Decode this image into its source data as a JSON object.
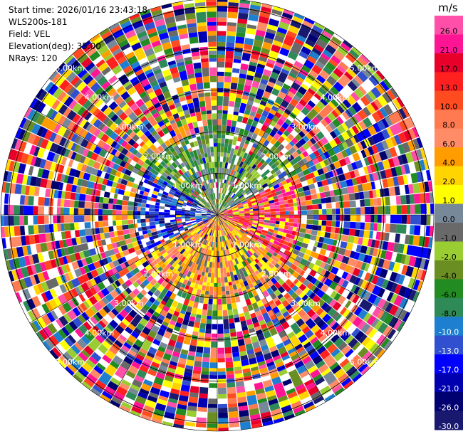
{
  "info": {
    "start_time": "Start time: 2026/01/16 23:43:18",
    "instrument": "WLS200s-181",
    "field": "Field: VEL",
    "elevation": "Elevation(deg): 35.00",
    "nrays": "NRays: 120"
  },
  "chart_data": {
    "type": "heatmap",
    "projection": "polar-ppi",
    "field": "VEL",
    "n_rays": 120,
    "range_rings_km": [
      "1.00km",
      "2.00km",
      "3.00km",
      "4.00km",
      "5.00km"
    ],
    "max_range_km": 5.2,
    "colorbar": {
      "unit": "m/s",
      "tick_labels": [
        "26.0",
        "21.0",
        "17.0",
        "13.0",
        "10.0",
        "8.0",
        "6.0",
        "4.0",
        "2.0",
        "1.0",
        "0.0",
        "-1.0",
        "-2.0",
        "-4.0",
        "-6.0",
        "-8.0",
        "-10.0",
        "-13.0",
        "-17.0",
        "-21.0",
        "-26.0",
        "-30.0"
      ],
      "colors": [
        "#ff4fa8",
        "#ff1493",
        "#e8002b",
        "#ff2020",
        "#ff4b20",
        "#ff7a50",
        "#ff8c66",
        "#ff9c00",
        "#ffd400",
        "#ffff00",
        "#778899",
        "#696969",
        "#9acd32",
        "#6b8e23",
        "#228b22",
        "#2e8b57",
        "#1e7fd0",
        "#3050d0",
        "#0000ff",
        "#0000b0",
        "#000070",
        "#191970"
      ]
    },
    "patterns": {
      "inner_north": [
        "#9acd32",
        "#6b8e23",
        "#2e8b57",
        "#228b22",
        "#778899",
        "#ffffff"
      ],
      "inner_south": [
        "#ffd400",
        "#ffff00",
        "#ff7a50",
        "#ff8c66",
        "#ff9c00",
        "#696969"
      ],
      "inner_east": [
        "#ff1493",
        "#ff2020",
        "#ff4fa8",
        "#ff4b20",
        "#ffff00"
      ],
      "inner_west": [
        "#0000ff",
        "#3050d0",
        "#1e7fd0",
        "#191970",
        "#ffffff"
      ]
    }
  }
}
